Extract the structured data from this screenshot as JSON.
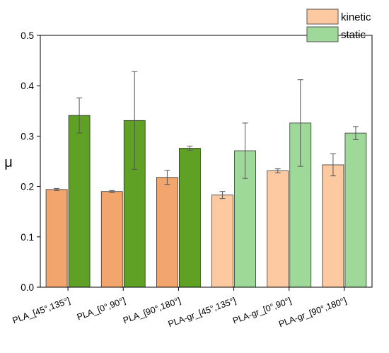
{
  "chart_data": {
    "type": "bar",
    "categories": [
      "PLA_[45°,135°]",
      "PLA_[0°,90°]",
      "PLA_[90°,180°]",
      "PLA-gr_[45°,135°]",
      "PLA-gr_[0°,90°]",
      "PLA-gr_[90°,180°]"
    ],
    "series": [
      {
        "name": "kinetic",
        "values": [
          0.194,
          0.19,
          0.218,
          0.183,
          0.231,
          0.243
        ],
        "errors": [
          0.002,
          0.002,
          0.014,
          0.007,
          0.004,
          0.022
        ],
        "colors": [
          "#f2a56c",
          "#f2a56c",
          "#f2a56c",
          "#fcc9a0",
          "#fcc9a0",
          "#fcc9a0"
        ],
        "legend_color": "#fcc9a0"
      },
      {
        "name": "static",
        "values": [
          0.341,
          0.331,
          0.276,
          0.271,
          0.326,
          0.306
        ],
        "errors": [
          0.035,
          0.097,
          0.004,
          0.055,
          0.086,
          0.013
        ],
        "colors": [
          "#5ea124",
          "#5ea124",
          "#5ea124",
          "#9fd99a",
          "#9fd99a",
          "#9fd99a"
        ],
        "legend_color": "#9fd99a"
      }
    ],
    "ylabel": "μ",
    "xlabel": "",
    "title": "",
    "ylim": [
      0,
      0.5
    ],
    "yticks": [
      "0.0",
      "0.1",
      "0.2",
      "0.3",
      "0.4",
      "0.5"
    ],
    "legend_position": "top-right",
    "grid": false,
    "edge_color": "#333333"
  }
}
